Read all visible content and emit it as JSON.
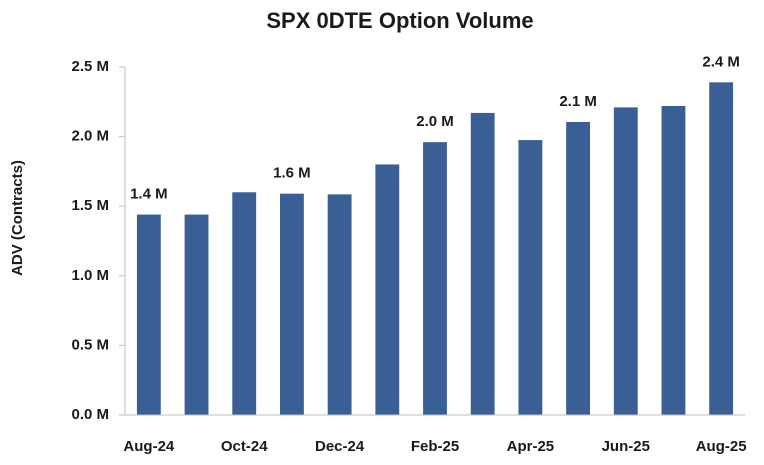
{
  "chart_data": {
    "type": "bar",
    "title": "SPX 0DTE Option Volume",
    "y_label": "ADV (Contracts)",
    "categories": [
      "Aug-24",
      null,
      "Oct-24",
      null,
      "Dec-24",
      null,
      "Feb-25",
      null,
      "Apr-25",
      null,
      "Jun-25",
      null,
      "Aug-25"
    ],
    "values": [
      1.44,
      1.44,
      1.6,
      1.59,
      1.585,
      1.8,
      1.96,
      2.17,
      1.975,
      2.105,
      2.21,
      2.22,
      2.39
    ],
    "value_labels": [
      "1.4 M",
      null,
      null,
      "1.6 M",
      null,
      null,
      "2.0 M",
      null,
      null,
      "2.1 M",
      null,
      null,
      "2.4 M"
    ],
    "color": "#3a5f94",
    "ylim": [
      0,
      2.5
    ],
    "yticks": [
      {
        "value": 0,
        "label": "0.0 M"
      },
      {
        "value": 0.5,
        "label": "0.5 M"
      },
      {
        "value": 1,
        "label": "1.0 M"
      },
      {
        "value": 1.5,
        "label": "1.5 M"
      },
      {
        "value": 2,
        "label": "2.0 M"
      },
      {
        "value": 2.5,
        "label": "2.5 M"
      }
    ],
    "grid": false
  }
}
